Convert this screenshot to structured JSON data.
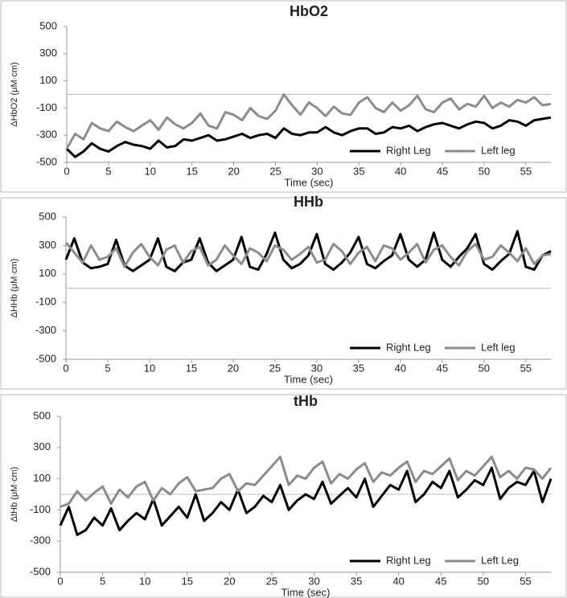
{
  "chart_data": [
    {
      "type": "line",
      "title": "HbO2",
      "x_label": "Time (sec)",
      "y_label": "ΔHbO2 (μM·cm)",
      "x": [
        0,
        1,
        2,
        3,
        4,
        5,
        6,
        7,
        8,
        9,
        10,
        11,
        12,
        13,
        14,
        15,
        16,
        17,
        18,
        19,
        20,
        21,
        22,
        23,
        24,
        25,
        26,
        27,
        28,
        29,
        30,
        31,
        32,
        33,
        34,
        35,
        36,
        37,
        38,
        39,
        40,
        41,
        42,
        43,
        44,
        45,
        46,
        47,
        48,
        49,
        50,
        51,
        52,
        53,
        54,
        55,
        56,
        57,
        58
      ],
      "xlim": [
        0,
        58
      ],
      "xticks": [
        0,
        5,
        10,
        15,
        20,
        25,
        30,
        35,
        40,
        45,
        50,
        55
      ],
      "ylim": [
        -500,
        500
      ],
      "yticks": [
        -500,
        -300,
        -100,
        100,
        300,
        500
      ],
      "zero_line": true,
      "legend": "lower right",
      "series": [
        {
          "name": "Right Leg",
          "color": "#000000",
          "values": [
            -400,
            -460,
            -420,
            -360,
            -400,
            -420,
            -380,
            -350,
            -370,
            -380,
            -400,
            -340,
            -390,
            -380,
            -330,
            -340,
            -320,
            -300,
            -340,
            -330,
            -310,
            -290,
            -320,
            -300,
            -290,
            -320,
            -250,
            -290,
            -300,
            -280,
            -280,
            -240,
            -280,
            -300,
            -270,
            -250,
            -250,
            -290,
            -280,
            -240,
            -250,
            -230,
            -270,
            -240,
            -220,
            -210,
            -230,
            -250,
            -220,
            -200,
            -210,
            -250,
            -230,
            -190,
            -200,
            -230,
            -190,
            -180,
            -170
          ]
        },
        {
          "name": "Left leg",
          "color": "#8c8c8c",
          "values": [
            -400,
            -290,
            -330,
            -210,
            -250,
            -270,
            -200,
            -240,
            -270,
            -230,
            -190,
            -260,
            -170,
            -220,
            -250,
            -210,
            -140,
            -230,
            -250,
            -130,
            -150,
            -190,
            -100,
            -160,
            -180,
            -120,
            0,
            -80,
            -150,
            -60,
            -100,
            -160,
            -90,
            -140,
            -150,
            -60,
            -20,
            -100,
            -130,
            -60,
            -120,
            -80,
            -10,
            -110,
            -130,
            -60,
            -30,
            -110,
            -70,
            -90,
            -10,
            -100,
            -60,
            -90,
            -40,
            -60,
            -20,
            -80,
            -70
          ]
        }
      ]
    },
    {
      "type": "line",
      "title": "HHb",
      "x_label": "Time (sec)",
      "y_label": "ΔHHb (μM·cm)",
      "x": [
        0,
        1,
        2,
        3,
        4,
        5,
        6,
        7,
        8,
        9,
        10,
        11,
        12,
        13,
        14,
        15,
        16,
        17,
        18,
        19,
        20,
        21,
        22,
        23,
        24,
        25,
        26,
        27,
        28,
        29,
        30,
        31,
        32,
        33,
        34,
        35,
        36,
        37,
        38,
        39,
        40,
        41,
        42,
        43,
        44,
        45,
        46,
        47,
        48,
        49,
        50,
        51,
        52,
        53,
        54,
        55,
        56,
        57,
        58
      ],
      "xlim": [
        0,
        58
      ],
      "xticks": [
        0,
        5,
        10,
        15,
        20,
        25,
        30,
        35,
        40,
        45,
        50,
        55
      ],
      "ylim": [
        -500,
        500
      ],
      "yticks": [
        -500,
        -300,
        -100,
        100,
        300,
        500
      ],
      "zero_line": true,
      "legend": "lower right",
      "series": [
        {
          "name": "Right Leg",
          "color": "#000000",
          "values": [
            200,
            350,
            180,
            140,
            150,
            170,
            340,
            160,
            120,
            160,
            200,
            350,
            150,
            120,
            180,
            200,
            350,
            180,
            120,
            160,
            200,
            360,
            150,
            130,
            240,
            390,
            200,
            140,
            170,
            230,
            380,
            170,
            130,
            180,
            250,
            360,
            170,
            140,
            190,
            230,
            380,
            200,
            150,
            200,
            390,
            200,
            150,
            220,
            280,
            380,
            170,
            130,
            190,
            240,
            400,
            150,
            130,
            230,
            260
          ]
        },
        {
          "name": "Left leg",
          "color": "#8c8c8c",
          "values": [
            320,
            250,
            180,
            300,
            200,
            220,
            280,
            150,
            250,
            310,
            220,
            160,
            270,
            300,
            180,
            260,
            290,
            160,
            200,
            300,
            230,
            170,
            280,
            250,
            190,
            300,
            270,
            200,
            240,
            290,
            180,
            200,
            310,
            260,
            170,
            250,
            290,
            190,
            300,
            280,
            200,
            250,
            310,
            180,
            270,
            300,
            220,
            160,
            260,
            310,
            200,
            220,
            300,
            250,
            190,
            280,
            170,
            230,
            240
          ]
        }
      ]
    },
    {
      "type": "line",
      "title": "tHb",
      "x_label": "Time (sec)",
      "y_label": "ΔtHb (μM·cm)",
      "x": [
        0,
        1,
        2,
        3,
        4,
        5,
        6,
        7,
        8,
        9,
        10,
        11,
        12,
        13,
        14,
        15,
        16,
        17,
        18,
        19,
        20,
        21,
        22,
        23,
        24,
        25,
        26,
        27,
        28,
        29,
        30,
        31,
        32,
        33,
        34,
        35,
        36,
        37,
        38,
        39,
        40,
        41,
        42,
        43,
        44,
        45,
        46,
        47,
        48,
        49,
        50,
        51,
        52,
        53,
        54,
        55,
        56,
        57,
        58
      ],
      "xlim": [
        0,
        58
      ],
      "xticks": [
        0,
        5,
        10,
        15,
        20,
        25,
        30,
        35,
        40,
        45,
        50,
        55
      ],
      "ylim": [
        -500,
        500
      ],
      "yticks": [
        -500,
        -300,
        -100,
        100,
        300,
        500
      ],
      "zero_line": true,
      "legend": "lower right",
      "series": [
        {
          "name": "Right Leg",
          "color": "#000000",
          "values": [
            -200,
            -80,
            -260,
            -230,
            -150,
            -200,
            -90,
            -230,
            -170,
            -120,
            -160,
            -30,
            -200,
            -140,
            -80,
            -150,
            0,
            -170,
            -120,
            -50,
            -100,
            30,
            -120,
            -80,
            -10,
            -50,
            60,
            -100,
            -40,
            0,
            -30,
            80,
            -60,
            -10,
            40,
            -20,
            100,
            -80,
            -10,
            60,
            30,
            150,
            -50,
            0,
            80,
            40,
            150,
            -20,
            30,
            90,
            60,
            170,
            -30,
            40,
            80,
            60,
            150,
            -50,
            100
          ]
        },
        {
          "name": "Left Leg",
          "color": "#8c8c8c",
          "values": [
            -80,
            -60,
            20,
            -40,
            10,
            50,
            -60,
            30,
            -20,
            50,
            80,
            -40,
            40,
            0,
            70,
            110,
            20,
            30,
            40,
            100,
            130,
            20,
            70,
            60,
            120,
            180,
            240,
            60,
            120,
            100,
            170,
            210,
            70,
            130,
            100,
            160,
            200,
            80,
            140,
            120,
            170,
            210,
            80,
            150,
            130,
            180,
            230,
            90,
            150,
            120,
            180,
            240,
            110,
            150,
            100,
            170,
            160,
            100,
            170
          ]
        }
      ]
    }
  ]
}
